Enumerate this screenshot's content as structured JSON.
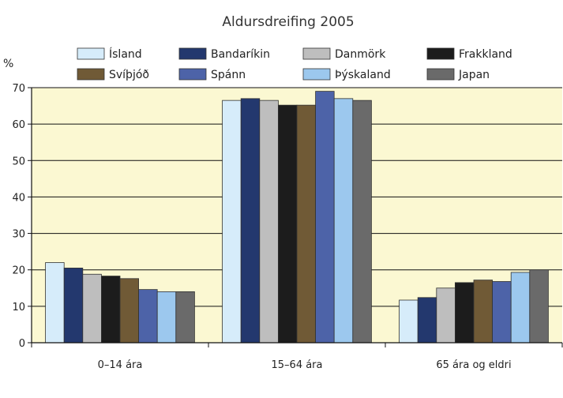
{
  "chart_data": {
    "type": "bar",
    "title": "Aldursdreifing 2005",
    "ylabel": "%",
    "ylim": [
      0,
      70
    ],
    "yticks": [
      0,
      10,
      20,
      30,
      40,
      50,
      60,
      70
    ],
    "grid": true,
    "legend_position": "top",
    "categories": [
      "0–14 ára",
      "15–64 ára",
      "65 ára og eldri"
    ],
    "series": [
      {
        "name": "Ísland",
        "color": "#d6ecfa",
        "values": [
          22,
          66.5,
          11.7
        ]
      },
      {
        "name": "Bandaríkin",
        "color": "#23386e",
        "values": [
          20.5,
          67,
          12.4
        ]
      },
      {
        "name": "Danmörk",
        "color": "#bebebe",
        "values": [
          18.8,
          66.5,
          15
        ]
      },
      {
        "name": "Frakkland",
        "color": "#1c1c1c",
        "values": [
          18.3,
          65.2,
          16.5
        ]
      },
      {
        "name": "Svíþjóð",
        "color": "#705a36",
        "values": [
          17.6,
          65.2,
          17.2
        ]
      },
      {
        "name": "Spánn",
        "color": "#4d63a8",
        "values": [
          14.6,
          69,
          16.8
        ]
      },
      {
        "name": "Þýskaland",
        "color": "#9cc8ee",
        "values": [
          14,
          67,
          19.3
        ]
      },
      {
        "name": "Japan",
        "color": "#6a6a6a",
        "values": [
          14,
          66.5,
          20
        ]
      }
    ],
    "colors": {
      "plot_background": "#fbf8d2",
      "gridline": "#111111"
    }
  }
}
